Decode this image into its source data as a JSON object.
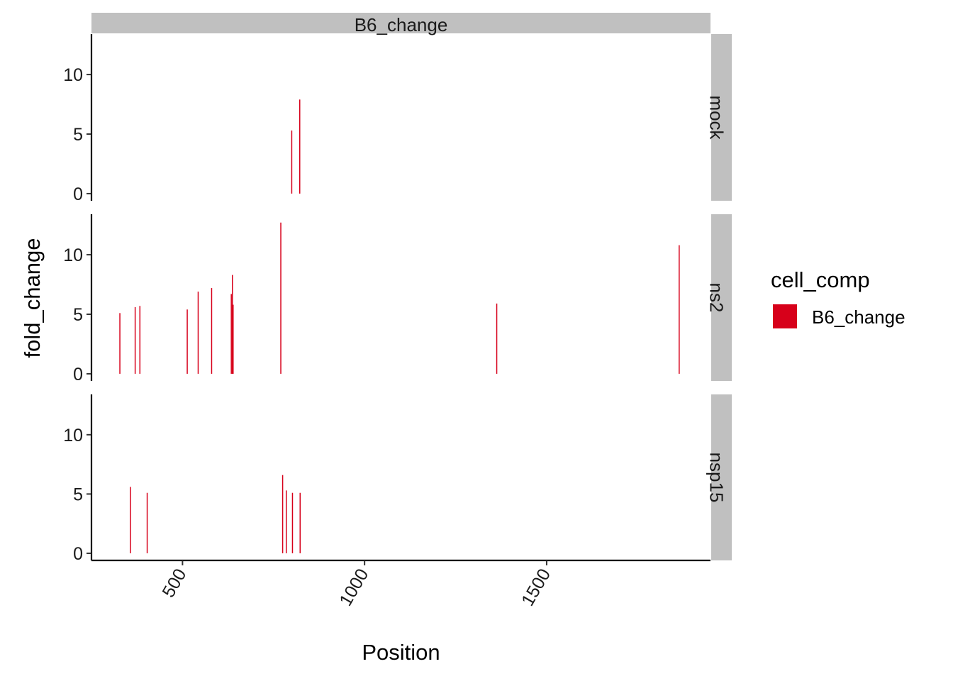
{
  "chart_data": {
    "type": "bar",
    "facet_column_label": "B6_change",
    "facet_rows": [
      "mock",
      "ns2",
      "nsp15"
    ],
    "xlabel": "Position",
    "ylabel": "fold_change",
    "xlim": [
      250,
      1950
    ],
    "ylim": [
      -0.6,
      13.4
    ],
    "x_ticks": [
      500,
      1000,
      1500
    ],
    "x_tick_labels": [
      "500",
      "1000",
      "1500"
    ],
    "y_ticks": [
      0,
      5,
      10
    ],
    "y_tick_labels": [
      "0",
      "5",
      "10"
    ],
    "x_tick_label_rotation": "-60deg",
    "grid": false,
    "legend": {
      "title": "cell_comp",
      "position": "right",
      "entries": [
        {
          "label": "B6_change",
          "color": "#d7001a"
        }
      ]
    },
    "series": [
      {
        "name": "B6_change",
        "color": "#d7001a",
        "panels": [
          {
            "row": "mock",
            "points": [
              {
                "x": 800,
                "y": 5.3
              },
              {
                "x": 822,
                "y": 7.9
              }
            ]
          },
          {
            "row": "ns2",
            "points": [
              {
                "x": 328,
                "y": 5.1
              },
              {
                "x": 370,
                "y": 5.6
              },
              {
                "x": 383,
                "y": 5.7
              },
              {
                "x": 513,
                "y": 5.4
              },
              {
                "x": 543,
                "y": 6.9
              },
              {
                "x": 580,
                "y": 7.2
              },
              {
                "x": 634,
                "y": 6.7
              },
              {
                "x": 637,
                "y": 8.3
              },
              {
                "x": 639,
                "y": 5.8
              },
              {
                "x": 770,
                "y": 12.7
              },
              {
                "x": 1363,
                "y": 5.9
              },
              {
                "x": 1864,
                "y": 10.8
              }
            ]
          },
          {
            "row": "nsp15",
            "points": [
              {
                "x": 357,
                "y": 5.6
              },
              {
                "x": 403,
                "y": 5.1
              },
              {
                "x": 775,
                "y": 6.6
              },
              {
                "x": 785,
                "y": 5.3
              },
              {
                "x": 802,
                "y": 5.1
              },
              {
                "x": 823,
                "y": 5.1
              }
            ]
          }
        ]
      }
    ]
  }
}
